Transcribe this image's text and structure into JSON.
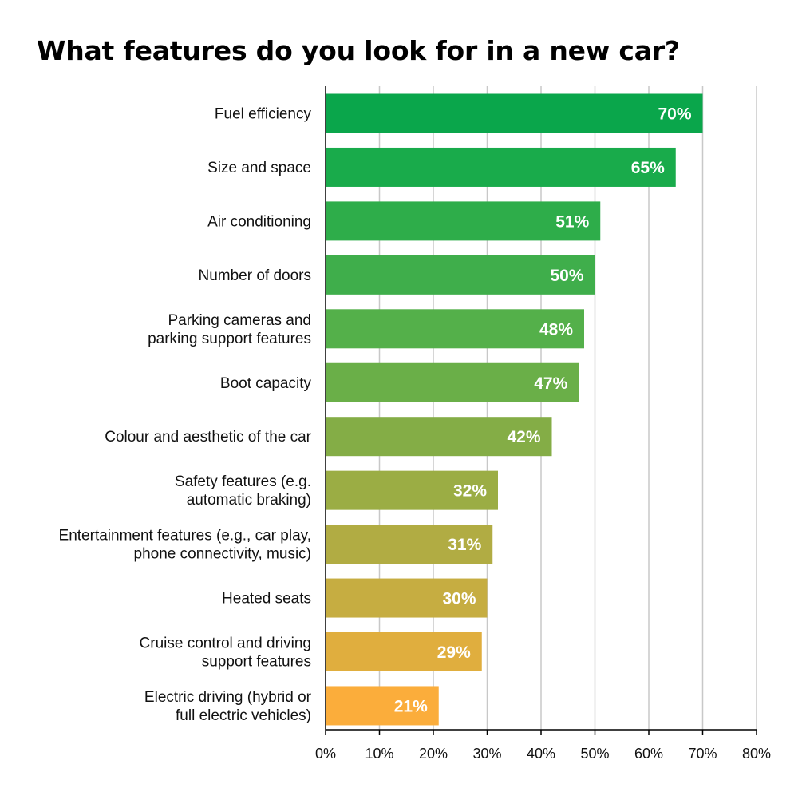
{
  "chart_data": {
    "type": "bar",
    "orientation": "horizontal",
    "title": "What features do you look for in a new car?",
    "xlabel": "",
    "ylabel": "",
    "xlim": [
      0,
      80
    ],
    "x_ticks": [
      0,
      10,
      20,
      30,
      40,
      50,
      60,
      70,
      80
    ],
    "x_tick_labels": [
      "0%",
      "10%",
      "20%",
      "30%",
      "40%",
      "50%",
      "60%",
      "70%",
      "80%"
    ],
    "grid": "vertical",
    "legend": "none",
    "categories": [
      [
        "Fuel efficiency"
      ],
      [
        "Size and space"
      ],
      [
        "Air conditioning"
      ],
      [
        "Number of doors"
      ],
      [
        "Parking cameras and",
        "parking support features"
      ],
      [
        "Boot capacity"
      ],
      [
        "Colour and aesthetic of the car"
      ],
      [
        "Safety features (e.g.",
        "automatic braking)"
      ],
      [
        "Entertainment features (e.g., car play,",
        "phone connectivity, music)"
      ],
      [
        "Heated seats"
      ],
      [
        "Cruise control and driving",
        "support features"
      ],
      [
        "Electric driving (hybrid or",
        "full electric vehicles)"
      ]
    ],
    "values": [
      70,
      65,
      51,
      50,
      48,
      47,
      42,
      32,
      31,
      30,
      29,
      21
    ],
    "value_labels": [
      "70%",
      "65%",
      "51%",
      "50%",
      "48%",
      "47%",
      "42%",
      "32%",
      "31%",
      "30%",
      "29%",
      "21%"
    ],
    "colors": [
      "#0aa64b",
      "#19ab4b",
      "#2ead4a",
      "#3fae4b",
      "#54b04a",
      "#6aaf48",
      "#84ad46",
      "#9bad44",
      "#b1ac43",
      "#c6ad41",
      "#e0ae3e",
      "#fbad3b"
    ]
  }
}
